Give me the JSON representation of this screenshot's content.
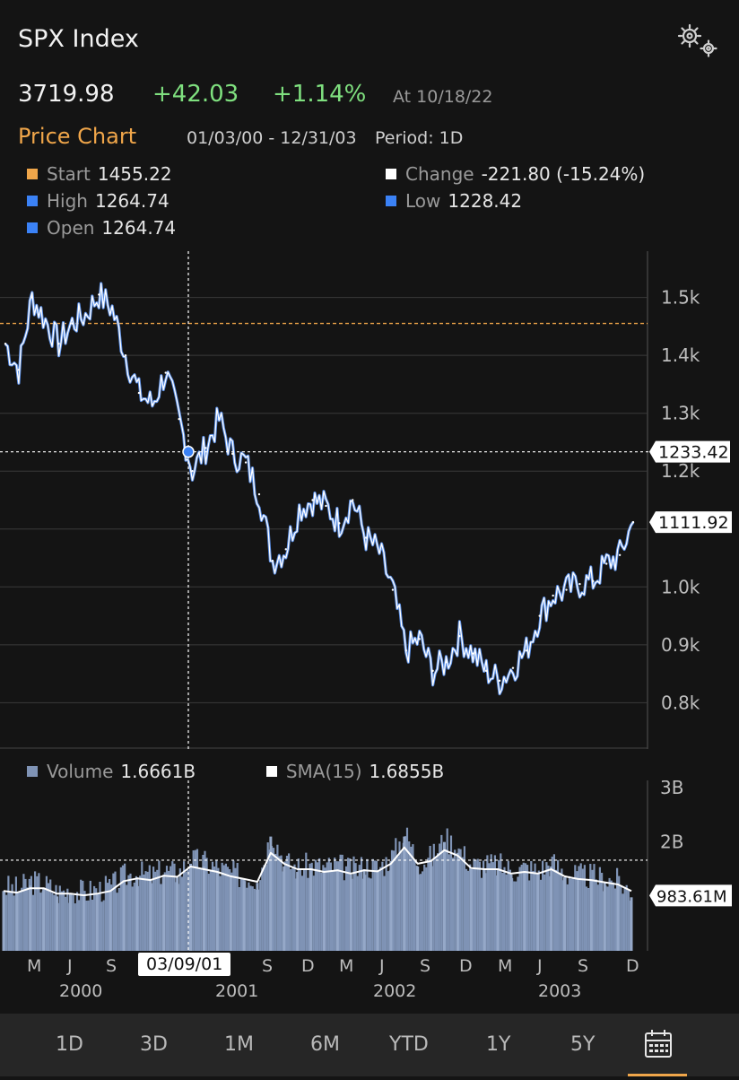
{
  "header": {
    "title": "SPX Index",
    "price": "3719.98",
    "change": "+42.03",
    "change_pct": "+1.14%",
    "as_of": "At 10/18/22",
    "chart_label": "Price Chart",
    "date_range": "01/03/00 - 12/31/03",
    "period": "Period: 1D",
    "settings_icon": "gear-icon"
  },
  "stats": {
    "start": {
      "label": "Start",
      "value": "1455.22",
      "color": "#f0a64a"
    },
    "high": {
      "label": "High",
      "value": "1264.74",
      "color": "#3b82f6"
    },
    "open": {
      "label": "Open",
      "value": "1264.74",
      "color": "#3b82f6"
    },
    "change": {
      "label": "Change",
      "value": "-221.80 (-15.24%)",
      "color": "#ffffff"
    },
    "low": {
      "label": "Low",
      "value": "1228.42",
      "color": "#3b82f6"
    }
  },
  "volume_legend": {
    "volume_label": "Volume",
    "volume_value": "1.6661B",
    "volume_color": "#7f93b5",
    "sma_label": "SMA(15)",
    "sma_value": "1.6855B",
    "sma_color": "#ffffff"
  },
  "chart_data": [
    {
      "type": "line",
      "x_start": "2000-01-03",
      "x_end": "2003-12-31",
      "ylim": [
        720,
        1580
      ],
      "y_ticks": [
        800,
        900,
        1000,
        1100,
        1200,
        1300,
        1400,
        1500
      ],
      "y_tick_labels": [
        "0.8k",
        "0.9k",
        "1.0k",
        "",
        "1.2k",
        "1.3k",
        "1.4k",
        "1.5k"
      ],
      "start_reference": 1455.22,
      "crosshair": {
        "date": "03/09/01",
        "value": 1233.42,
        "label": "1233.42"
      },
      "last": {
        "value": 1111.92,
        "label": "1111.92"
      },
      "series": [
        {
          "x": [
            "2000-01",
            "2000-02",
            "2000-03",
            "2000-04",
            "2000-05",
            "2000-06",
            "2000-07",
            "2000-08",
            "2000-09",
            "2000-10",
            "2000-11",
            "2000-12",
            "2001-01",
            "2001-02",
            "2001-03",
            "2001-04",
            "2001-05",
            "2001-06",
            "2001-07",
            "2001-08",
            "2001-09",
            "2001-10",
            "2001-11",
            "2001-12",
            "2002-01",
            "2002-02",
            "2002-03",
            "2002-04",
            "2002-05",
            "2002-06",
            "2002-07",
            "2002-08",
            "2002-09",
            "2002-10",
            "2002-11",
            "2002-12",
            "2003-01",
            "2003-02",
            "2003-03",
            "2003-04",
            "2003-05",
            "2003-06",
            "2003-07",
            "2003-08",
            "2003-09",
            "2003-10",
            "2003-11",
            "2003-12"
          ],
          "values": [
            1420,
            1375,
            1500,
            1460,
            1420,
            1455,
            1470,
            1505,
            1480,
            1400,
            1335,
            1315,
            1370,
            1290,
            1200,
            1240,
            1290,
            1230,
            1215,
            1160,
            1045,
            1065,
            1135,
            1150,
            1140,
            1110,
            1150,
            1085,
            1060,
            995,
            890,
            910,
            855,
            870,
            915,
            885,
            855,
            838,
            860,
            890,
            950,
            985,
            995,
            1005,
            1010,
            1040,
            1055,
            1111.92
          ]
        }
      ]
    },
    {
      "type": "bar",
      "ylim": [
        0,
        3
      ],
      "y_ticks": [
        2,
        3
      ],
      "y_tick_labels": [
        "2B",
        "3B"
      ],
      "unit": "B",
      "crosshair_value": 1.6661,
      "last": {
        "value": 0.98361,
        "label": "983.61M"
      },
      "x_tick_labels": [
        "M",
        "J",
        "S",
        "",
        "S",
        "D",
        "M",
        "J",
        "S",
        "D",
        "M",
        "J",
        "S",
        "D"
      ],
      "year_labels": [
        "2000",
        "2001",
        "2002",
        "2003"
      ],
      "cursor_date": "03/09/01",
      "series": [
        {
          "name": "Volume",
          "values": [
            1.1,
            1.05,
            1.2,
            1.15,
            1.0,
            1.05,
            1.0,
            1.05,
            1.1,
            1.3,
            1.35,
            1.3,
            1.4,
            1.35,
            1.6,
            1.55,
            1.45,
            1.35,
            1.3,
            1.25,
            2.1,
            1.55,
            1.45,
            1.5,
            1.45,
            1.5,
            1.4,
            1.5,
            1.45,
            1.65,
            2.1,
            1.55,
            1.65,
            2.0,
            1.8,
            1.5,
            1.5,
            1.5,
            1.4,
            1.45,
            1.4,
            1.55,
            1.35,
            1.3,
            1.3,
            1.25,
            1.2,
            0.98361
          ]
        },
        {
          "name": "SMA(15)",
          "values": [
            1.1,
            1.07,
            1.15,
            1.15,
            1.05,
            1.05,
            1.02,
            1.05,
            1.1,
            1.28,
            1.33,
            1.3,
            1.38,
            1.36,
            1.55,
            1.5,
            1.45,
            1.37,
            1.32,
            1.27,
            1.8,
            1.6,
            1.5,
            1.5,
            1.45,
            1.48,
            1.42,
            1.48,
            1.46,
            1.6,
            1.9,
            1.6,
            1.65,
            1.85,
            1.75,
            1.52,
            1.5,
            1.5,
            1.42,
            1.45,
            1.42,
            1.5,
            1.37,
            1.32,
            1.3,
            1.26,
            1.22,
            1.1
          ]
        }
      ]
    }
  ],
  "tabs": [
    "1D",
    "3D",
    "1M",
    "6M",
    "YTD",
    "1Y",
    "5Y"
  ],
  "calendar_icon": "calendar-icon"
}
